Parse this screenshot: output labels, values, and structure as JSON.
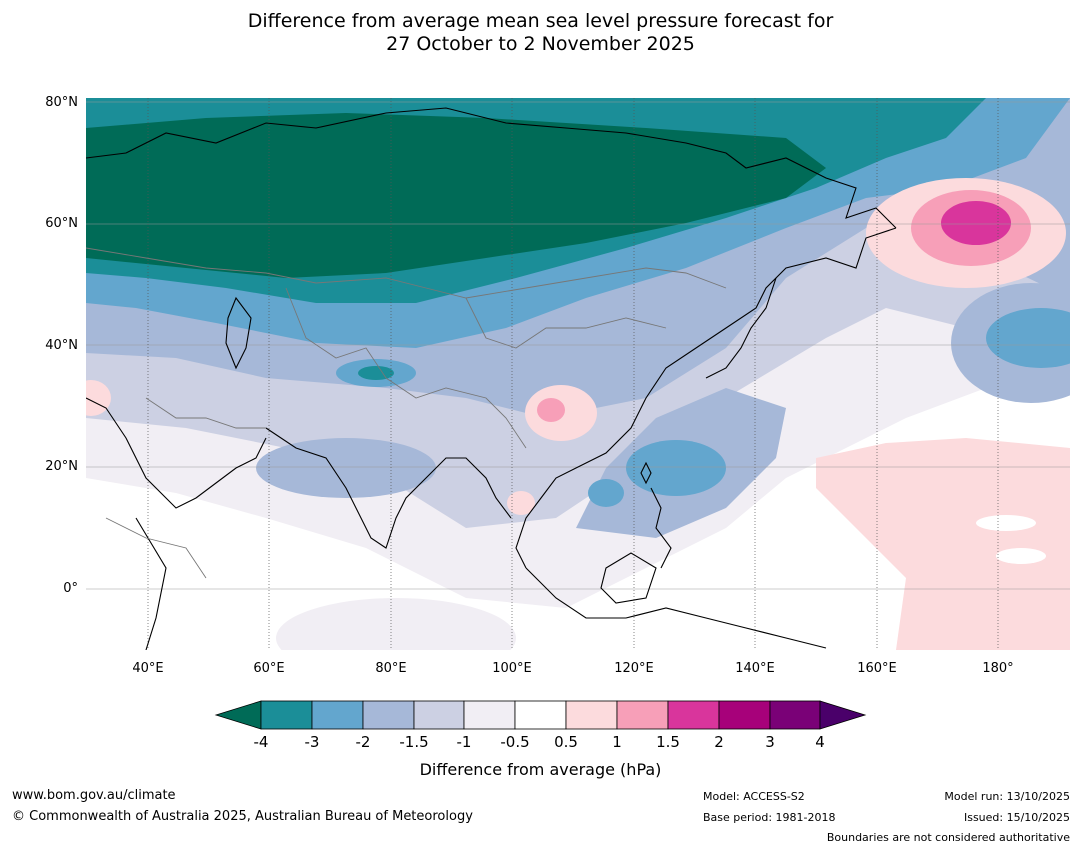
{
  "title": {
    "line1": "Difference from average mean sea level pressure forecast for",
    "line2": "27 October to 2 November 2025"
  },
  "map": {
    "lat_labels": [
      "80°N",
      "60°N",
      "40°N",
      "20°N",
      "0°"
    ],
    "lon_labels": [
      "40°E",
      "60°E",
      "80°E",
      "100°E",
      "120°E",
      "140°E",
      "160°E",
      "180°"
    ],
    "features": {
      "siberia_low": "-4",
      "kamchatka_high": "1.5",
      "west_pacific_low": "-3",
      "north_pacific_low": "-3",
      "china_high": "1"
    }
  },
  "colorbar": {
    "label": "Difference from average (hPa)",
    "ticks": [
      "-4",
      "-3",
      "-2",
      "-1.5",
      "-1",
      "-0.5",
      "0.5",
      "1",
      "1.5",
      "2",
      "3",
      "4"
    ],
    "colors": {
      "under": "#006b57",
      "bins": [
        "#1b8e98",
        "#63a6ce",
        "#a6b8d8",
        "#ccd0e3",
        "#f1eef4",
        "#ffffff",
        "#fcdbdd",
        "#f79fb8",
        "#d9359c",
        "#a7017a",
        "#7a0177"
      ],
      "over": "#4a006a"
    }
  },
  "footer": {
    "website": "www.bom.gov.au/climate",
    "copyright": "© Commonwealth of Australia 2025, Australian Bureau of Meteorology",
    "model": "Model: ACCESS-S2",
    "base_period": "Base period: 1981-2018",
    "model_run": "Model run: 13/10/2025",
    "issued": "Issued: 15/10/2025",
    "disclaimer": "Boundaries are not considered authoritative"
  }
}
